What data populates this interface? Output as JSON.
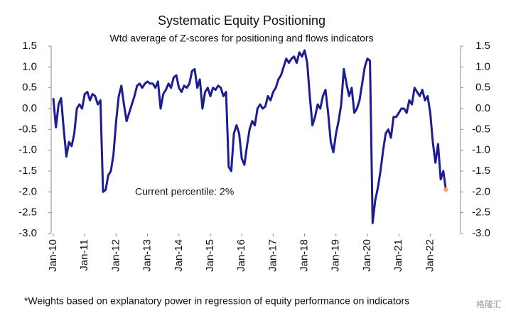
{
  "chart_data": {
    "type": "line",
    "title": "Systematic Equity Positioning",
    "subtitle": "Wtd average of Z-scores for positioning and flows indicators",
    "annotation": "Current percentile: 2%",
    "footnote": "*Weights based on explanatory power in regression of equity performance on indicators",
    "watermark": "格隆汇",
    "categories": [
      "Jan-10",
      null,
      null,
      null,
      null,
      null,
      null,
      null,
      null,
      null,
      null,
      null,
      "Jan-11",
      null,
      null,
      null,
      null,
      null,
      null,
      null,
      null,
      null,
      null,
      null,
      "Jan-12",
      null,
      null,
      null,
      null,
      null,
      null,
      null,
      null,
      null,
      null,
      null,
      "Jan-13",
      null,
      null,
      null,
      null,
      null,
      null,
      null,
      null,
      null,
      null,
      null,
      "Jan-14",
      null,
      null,
      null,
      null,
      null,
      null,
      null,
      null,
      null,
      null,
      null,
      "Jan-15",
      null,
      null,
      null,
      null,
      null,
      null,
      null,
      null,
      null,
      null,
      null,
      "Jan-16",
      null,
      null,
      null,
      null,
      null,
      null,
      null,
      null,
      null,
      null,
      null,
      "Jan-17",
      null,
      null,
      null,
      null,
      null,
      null,
      null,
      null,
      null,
      null,
      null,
      "Jan-18",
      null,
      null,
      null,
      null,
      null,
      null,
      null,
      null,
      null,
      null,
      null,
      "Jan-19",
      null,
      null,
      null,
      null,
      null,
      null,
      null,
      null,
      null,
      null,
      null,
      "Jan-20",
      null,
      null,
      null,
      null,
      null,
      null,
      null,
      null,
      null,
      null,
      null,
      "Jan-21",
      null,
      null,
      null,
      null,
      null,
      null,
      null,
      null,
      null,
      null,
      null,
      "Jan-22",
      null,
      null,
      null,
      null,
      null,
      null
    ],
    "series": [
      {
        "color": "#1c1c93",
        "last_point_color": "#f4a460",
        "values": [
          0.25,
          -0.45,
          0.1,
          0.25,
          -0.5,
          -1.15,
          -0.8,
          -0.9,
          -0.6,
          0.0,
          0.1,
          0.0,
          0.35,
          0.4,
          0.2,
          0.35,
          0.3,
          0.1,
          0.2,
          -2.0,
          -1.95,
          -1.6,
          -1.5,
          -1.1,
          -0.3,
          0.3,
          0.55,
          0.1,
          -0.3,
          -0.1,
          0.1,
          0.3,
          0.55,
          0.6,
          0.5,
          0.6,
          0.65,
          0.6,
          0.6,
          0.5,
          0.65,
          0.0,
          0.35,
          0.45,
          0.6,
          0.5,
          0.75,
          0.8,
          0.5,
          0.4,
          0.55,
          0.5,
          0.6,
          0.9,
          0.95,
          0.5,
          0.7,
          0.0,
          0.4,
          0.5,
          0.3,
          0.5,
          0.45,
          0.55,
          0.5,
          0.3,
          0.4,
          -1.4,
          -1.5,
          -0.6,
          -0.4,
          -0.6,
          -1.2,
          -1.35,
          -0.9,
          -0.5,
          -0.3,
          -0.4,
          0.0,
          0.1,
          0.0,
          0.05,
          0.3,
          0.2,
          0.4,
          0.5,
          0.7,
          0.8,
          1.0,
          1.2,
          1.1,
          1.2,
          1.25,
          1.1,
          1.35,
          1.25,
          1.4,
          1.1,
          0.3,
          -0.4,
          -0.2,
          0.1,
          0.0,
          0.3,
          0.45,
          -0.1,
          -0.8,
          -1.05,
          -0.6,
          -0.3,
          0.1,
          0.95,
          0.6,
          0.3,
          0.5,
          -0.1,
          0.0,
          0.2,
          0.6,
          1.0,
          1.2,
          1.15,
          -2.75,
          -2.2,
          -1.9,
          -1.5,
          -1.0,
          -0.6,
          -0.5,
          -0.7,
          -0.2,
          -0.2,
          -0.1,
          0.0,
          0.0,
          -0.1,
          0.2,
          0.1,
          0.5,
          0.4,
          0.3,
          0.45,
          0.2,
          0.3,
          -0.1,
          -0.8,
          -1.3,
          -0.85,
          -1.7,
          -1.5,
          -1.95
        ]
      }
    ],
    "ylim": [
      -3.0,
      1.5
    ],
    "yticks": [
      {
        "value": -3.0,
        "label": "-3.0"
      },
      -2.5,
      {
        "value": -2.0,
        "label": "-2.0"
      },
      -1.5,
      {
        "value": -1.0,
        "label": "-1.0"
      },
      -0.5,
      {
        "value": 0.0,
        "label": "0.0"
      },
      0.5,
      {
        "value": 1.0,
        "label": "1.0"
      },
      1.5
    ],
    "right_axis_mirror": true
  }
}
